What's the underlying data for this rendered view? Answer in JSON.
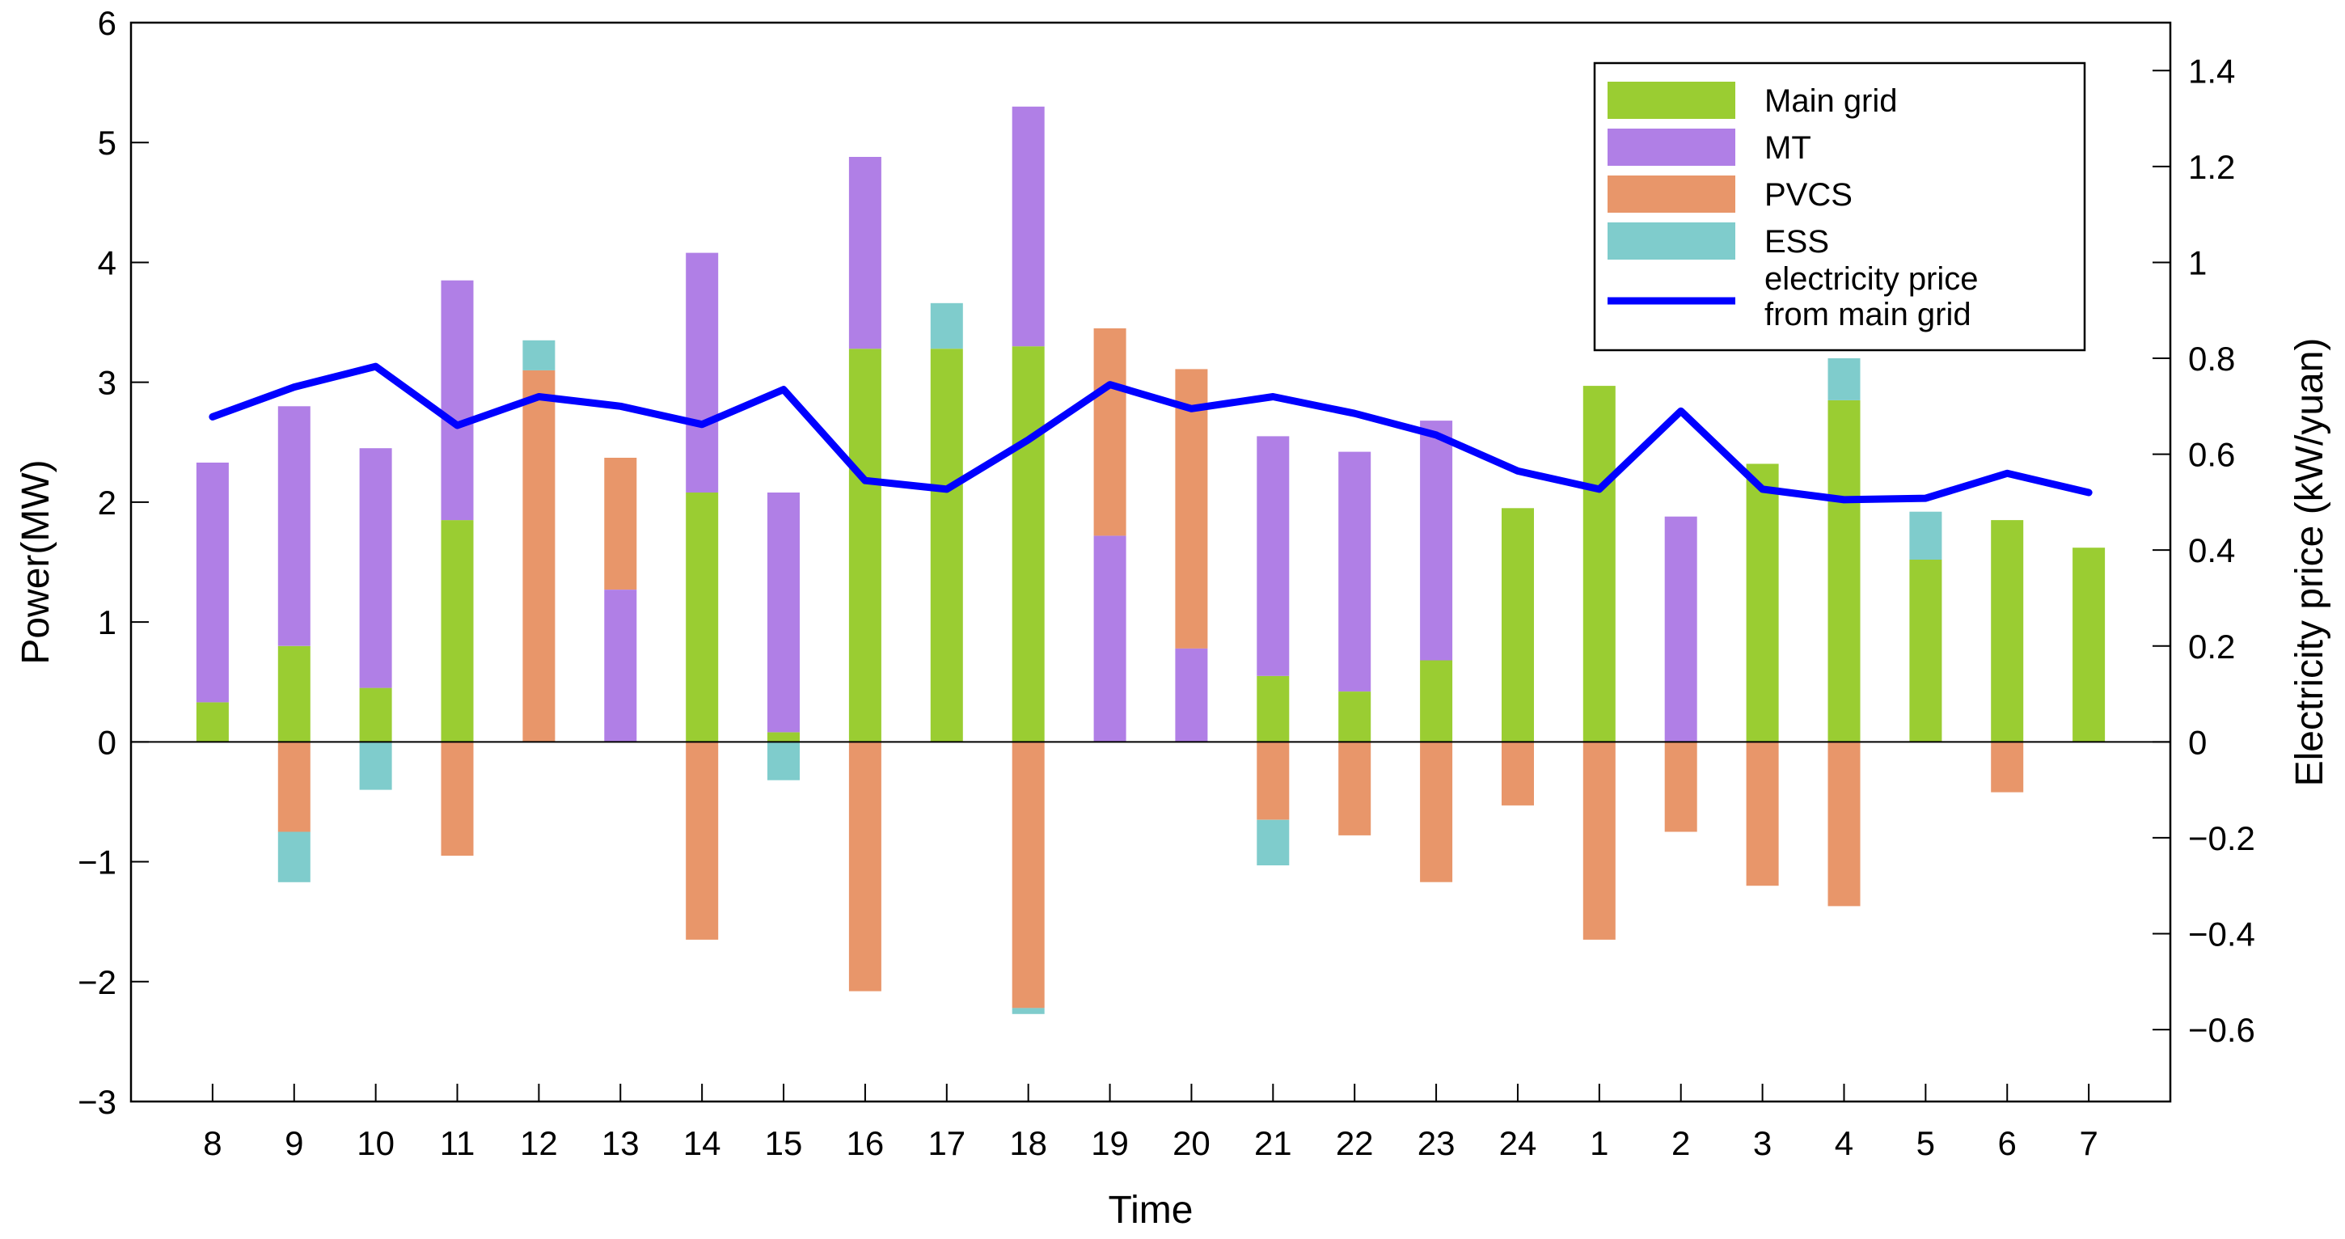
{
  "chart_data": {
    "type": "bar",
    "stacked": true,
    "title": "",
    "xlabel": "Time",
    "ylabel": "Power(MW)",
    "y2label": "Electricity price (kW/yuan)",
    "categories": [
      "8",
      "9",
      "10",
      "11",
      "12",
      "13",
      "14",
      "15",
      "16",
      "17",
      "18",
      "19",
      "20",
      "21",
      "22",
      "23",
      "24",
      "1",
      "2",
      "3",
      "4",
      "5",
      "6",
      "7"
    ],
    "ylim": [
      -3,
      6
    ],
    "y_ticks": [
      -3,
      -2,
      -1,
      0,
      1,
      2,
      3,
      4,
      5,
      6
    ],
    "y_tick_labels": [
      "−3",
      "−2",
      "−1",
      "0",
      "1",
      "2",
      "3",
      "4",
      "5",
      "6"
    ],
    "y2lim": [
      -0.75,
      1.5
    ],
    "y2_ticks": [
      -0.6,
      -0.4,
      -0.2,
      0,
      0.2,
      0.4,
      0.6,
      0.8,
      1,
      1.2,
      1.4
    ],
    "y2_tick_labels": [
      "−0.6",
      "−0.4",
      "−0.2",
      "0",
      "0.2",
      "0.4",
      "0.6",
      "0.8",
      "1",
      "1.2",
      "1.4"
    ],
    "series": [
      {
        "name": "Main grid",
        "color": "#9acd32",
        "values": [
          0.33,
          0.8,
          0.45,
          1.85,
          0,
          0,
          2.08,
          0.08,
          3.28,
          3.28,
          3.3,
          0,
          0,
          0.55,
          0.42,
          0.68,
          1.95,
          2.97,
          0,
          2.32,
          2.85,
          1.52,
          1.85,
          1.62
        ]
      },
      {
        "name": "MT",
        "color": "#b07fe6",
        "values": [
          2.0,
          2.0,
          2.0,
          2.0,
          0,
          1.27,
          2.0,
          2.0,
          1.6,
          0,
          2.0,
          1.72,
          0.78,
          2.0,
          2.0,
          2.0,
          0,
          0,
          1.88,
          0,
          0,
          0,
          0,
          0
        ]
      },
      {
        "name": "PVCS",
        "color": "#e8966a",
        "values": [
          0,
          -0.75,
          0,
          -0.95,
          3.1,
          1.1,
          -1.65,
          0,
          -2.08,
          0,
          -2.22,
          1.73,
          2.33,
          -0.65,
          -0.78,
          -1.17,
          -0.53,
          -1.65,
          -0.75,
          -1.2,
          -1.37,
          0,
          -0.42,
          0
        ]
      },
      {
        "name": "ESS",
        "color": "#7fcccc",
        "values": [
          0,
          -0.42,
          -0.4,
          0,
          0.25,
          0,
          0,
          -0.32,
          0,
          0.38,
          -0.05,
          0,
          0,
          -0.38,
          0,
          0,
          0,
          0,
          0,
          0,
          0.35,
          0.4,
          0,
          0
        ]
      }
    ],
    "line_series": {
      "name": "electricity price from main grid",
      "axis": "right",
      "color": "#0000ff",
      "values": [
        0.678,
        0.74,
        0.783,
        0.66,
        0.72,
        0.7,
        0.662,
        0.735,
        0.545,
        0.527,
        0.63,
        0.745,
        0.695,
        0.72,
        0.685,
        0.64,
        0.565,
        0.527,
        0.69,
        0.527,
        0.505,
        0.508,
        0.56,
        0.52
      ]
    },
    "legend": {
      "position": "top-right",
      "entries": [
        "Main grid",
        "MT",
        "PVCS",
        "ESS"
      ],
      "line_entry": [
        "electricity price",
        "from main grid"
      ]
    }
  }
}
